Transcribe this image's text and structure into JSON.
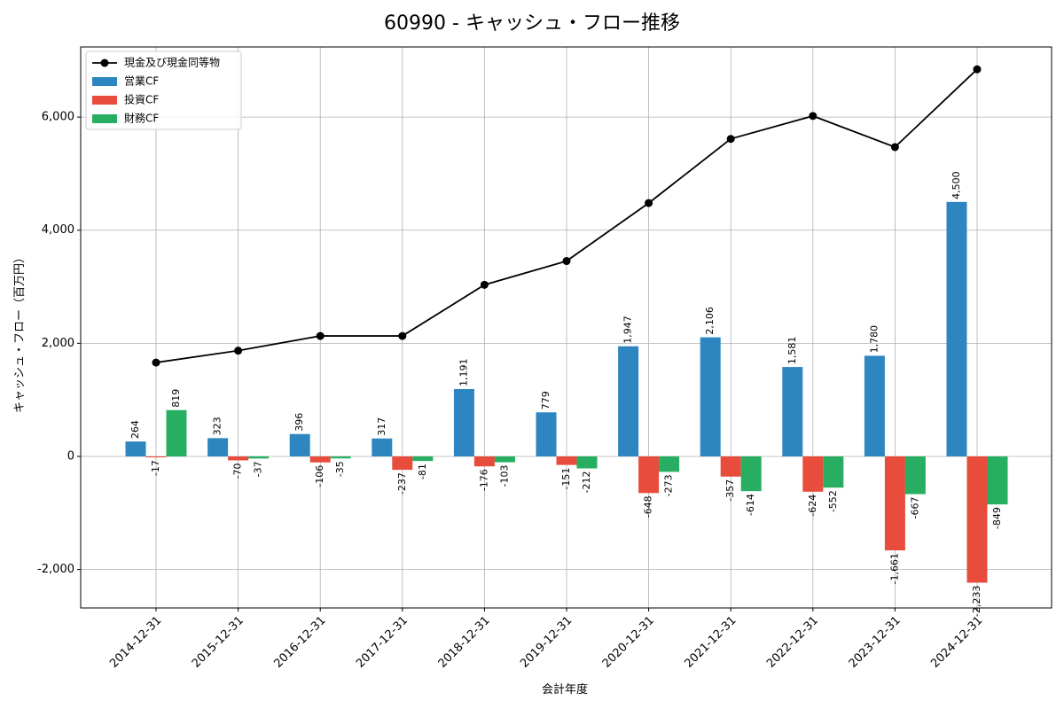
{
  "chart_data": {
    "type": "bar",
    "title": "60990 - キャッシュ・フロー推移",
    "xlabel": "会計年度",
    "ylabel": "キャッシュ・フロー（百万円）",
    "categories": [
      "2014-12-31",
      "2015-12-31",
      "2016-12-31",
      "2017-12-31",
      "2018-12-31",
      "2019-12-31",
      "2020-12-31",
      "2021-12-31",
      "2022-12-31",
      "2023-12-31",
      "2024-12-31"
    ],
    "ylim": [
      -2680,
      7240
    ],
    "yticks": [
      -2000,
      0,
      2000,
      4000,
      6000
    ],
    "ytick_labels": [
      "-2,000",
      "0",
      "2,000",
      "4,000",
      "6,000"
    ],
    "grid": true,
    "legend_position": "top-left",
    "line_series": {
      "name": "現金及び現金同等物",
      "color": "#000000",
      "values": [
        1660,
        1870,
        2130,
        2130,
        3035,
        3455,
        4480,
        5615,
        6020,
        5470,
        6845
      ]
    },
    "series": [
      {
        "name": "営業CF",
        "color": "#2e86c1",
        "values": [
          264,
          323,
          396,
          317,
          1191,
          779,
          1947,
          2106,
          1581,
          1780,
          4500
        ],
        "labels": [
          "264",
          "323",
          "396",
          "317",
          "1,191",
          "779",
          "1,947",
          "2,106",
          "1,581",
          "1,780",
          "4,500"
        ]
      },
      {
        "name": "投資CF",
        "color": "#e74c3c",
        "values": [
          -17,
          -70,
          -106,
          -237,
          -176,
          -151,
          -648,
          -357,
          -624,
          -1661,
          -2233
        ],
        "labels": [
          "-17",
          "-70",
          "-106",
          "-237",
          "-176",
          "-151",
          "-648",
          "-357",
          "-624",
          "-1,661",
          "-2,233"
        ]
      },
      {
        "name": "財務CF",
        "color": "#27ae60",
        "values": [
          819,
          -37,
          -35,
          -81,
          -103,
          -212,
          -273,
          -614,
          -552,
          -667,
          -849
        ],
        "labels": [
          "819",
          "-37",
          "-35",
          "-81",
          "-103",
          "-212",
          "-273",
          "-614",
          "-552",
          "-667",
          "-849"
        ]
      }
    ]
  }
}
